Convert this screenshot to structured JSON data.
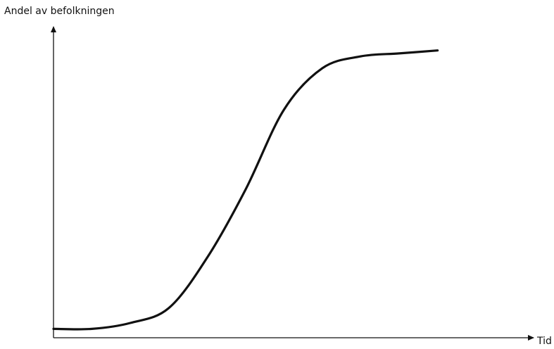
{
  "chart_data": {
    "type": "line",
    "title": "",
    "xlabel": "Tid",
    "ylabel": "Andel av befolkningen",
    "x_ticks": false,
    "y_ticks": false,
    "grid": false,
    "legend": "none",
    "line_color": "#111111",
    "axis_color": "#111111",
    "series": [
      {
        "name": "",
        "shape": "S-curve (logistic growth)",
        "x": [
          0,
          0.1,
          0.2,
          0.3,
          0.4,
          0.5,
          0.6,
          0.7,
          0.8,
          0.9,
          1.0
        ],
        "values": [
          0.03,
          0.03,
          0.05,
          0.1,
          0.27,
          0.5,
          0.77,
          0.91,
          0.95,
          0.96,
          0.97
        ]
      }
    ],
    "xlim": [
      0,
      1.25
    ],
    "ylim": [
      0,
      1.05
    ]
  }
}
